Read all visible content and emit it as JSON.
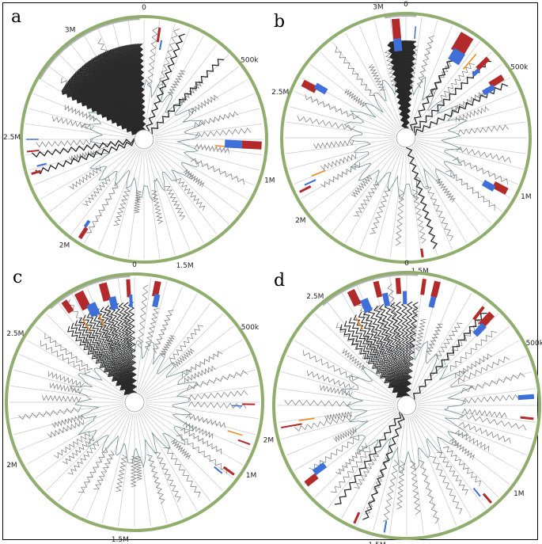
{
  "figure": {
    "colors": {
      "outer_ring": "#8fae6e",
      "spoke": "#c8c8c8",
      "inner_trace": "#6f8f8f",
      "zigzag": "#777777",
      "zigzag_dark": "#2a2a2a",
      "red_mark": "#b22a2a",
      "blue_mark": "#3f6fd8",
      "orange_mark": "#f08a1a",
      "gray_arc": "#b0b0b0"
    },
    "panels": [
      {
        "id": "a",
        "letter": "a",
        "tick_labels": [
          {
            "text": "0",
            "angle": 0
          },
          {
            "text": "500k",
            "angle": 53
          },
          {
            "text": "1M",
            "angle": 108
          },
          {
            "text": "1.5M",
            "angle": 162
          },
          {
            "text": "2M",
            "angle": 217
          },
          {
            "text": "2.5M",
            "angle": 271
          },
          {
            "text": "3M",
            "angle": 326
          }
        ],
        "fan": {
          "start": 300,
          "end": 358,
          "dense": true
        },
        "extra_zigzags": [
          20,
          44,
          253,
          262
        ],
        "marks": [
          {
            "angle": 8,
            "r0": 0.8,
            "r1": 0.92,
            "color": "red_mark",
            "w": 3
          },
          {
            "angle": 10,
            "r0": 0.74,
            "r1": 0.82,
            "color": "blue_mark",
            "w": 2
          },
          {
            "angle": 93,
            "r0": 0.8,
            "r1": 0.96,
            "color": "red_mark",
            "w": 10
          },
          {
            "angle": 93,
            "r0": 0.66,
            "r1": 0.8,
            "color": "blue_mark",
            "w": 10
          },
          {
            "angle": 95,
            "r0": 0.58,
            "r1": 0.66,
            "color": "orange_mark",
            "w": 1.5
          },
          {
            "angle": 264,
            "r0": 0.86,
            "r1": 0.96,
            "color": "red_mark",
            "w": 2
          },
          {
            "angle": 270,
            "r0": 0.86,
            "r1": 0.96,
            "color": "blue_mark",
            "w": 1.5
          },
          {
            "angle": 253,
            "r0": 0.88,
            "r1": 0.96,
            "color": "red_mark",
            "w": 3
          },
          {
            "angle": 256,
            "r0": 0.82,
            "r1": 0.9,
            "color": "blue_mark",
            "w": 2
          },
          {
            "angle": 213,
            "r0": 0.86,
            "r1": 0.96,
            "color": "red_mark",
            "w": 5
          },
          {
            "angle": 214,
            "r0": 0.8,
            "r1": 0.86,
            "color": "blue_mark",
            "w": 4
          }
        ]
      },
      {
        "id": "b",
        "letter": "b",
        "tick_labels": [
          {
            "text": "0",
            "angle": 0
          },
          {
            "text": "500k",
            "angle": 58
          },
          {
            "text": "1M",
            "angle": 116
          },
          {
            "text": "1.5M",
            "angle": 174
          },
          {
            "text": "2M",
            "angle": 232
          },
          {
            "text": "2.5M",
            "angle": 290
          },
          {
            "text": "3M",
            "angle": 348
          }
        ],
        "fan": {
          "start": 350,
          "end": 5,
          "dense": true
        },
        "extra_zigzags": [
          165,
          30,
          47,
          62
        ],
        "marks": [
          {
            "angle": 355,
            "r0": 0.8,
            "r1": 0.96,
            "color": "red_mark",
            "w": 10
          },
          {
            "angle": 355,
            "r0": 0.7,
            "r1": 0.8,
            "color": "blue_mark",
            "w": 10
          },
          {
            "angle": 5,
            "r0": 0.8,
            "r1": 0.9,
            "color": "blue_mark",
            "w": 1.5
          },
          {
            "angle": 31,
            "r0": 0.8,
            "r1": 0.96,
            "color": "red_mark",
            "w": 18
          },
          {
            "angle": 32,
            "r0": 0.72,
            "r1": 0.82,
            "color": "blue_mark",
            "w": 16
          },
          {
            "angle": 40,
            "r0": 0.72,
            "r1": 0.88,
            "color": "orange_mark",
            "w": 1.5
          },
          {
            "angle": 46,
            "r0": 0.8,
            "r1": 0.92,
            "color": "red_mark",
            "w": 6
          },
          {
            "angle": 47,
            "r0": 0.74,
            "r1": 0.8,
            "color": "blue_mark",
            "w": 5
          },
          {
            "angle": 58,
            "r0": 0.8,
            "r1": 0.92,
            "color": "red_mark",
            "w": 8
          },
          {
            "angle": 60,
            "r0": 0.72,
            "r1": 0.82,
            "color": "blue_mark",
            "w": 7
          },
          {
            "angle": 118,
            "r0": 0.8,
            "r1": 0.92,
            "color": "red_mark",
            "w": 9
          },
          {
            "angle": 120,
            "r0": 0.72,
            "r1": 0.82,
            "color": "blue_mark",
            "w": 8
          },
          {
            "angle": 172,
            "r0": 0.9,
            "r1": 0.97,
            "color": "red_mark",
            "w": 3
          },
          {
            "angle": 243,
            "r0": 0.86,
            "r1": 0.96,
            "color": "red_mark",
            "w": 3
          },
          {
            "angle": 245,
            "r0": 0.8,
            "r1": 0.9,
            "color": "blue_mark",
            "w": 2
          },
          {
            "angle": 248,
            "r0": 0.7,
            "r1": 0.82,
            "color": "orange_mark",
            "w": 1.5
          },
          {
            "angle": 298,
            "r0": 0.82,
            "r1": 0.94,
            "color": "red_mark",
            "w": 9
          },
          {
            "angle": 300,
            "r0": 0.74,
            "r1": 0.84,
            "color": "blue_mark",
            "w": 8
          }
        ]
      },
      {
        "id": "c",
        "letter": "c",
        "tick_labels": [
          {
            "text": "0",
            "angle": 0
          },
          {
            "text": "500k",
            "angle": 57
          },
          {
            "text": "1M",
            "angle": 122
          },
          {
            "text": "1.5M",
            "angle": 186
          },
          {
            "text": "2M",
            "angle": 243
          },
          {
            "text": "2.5M",
            "angle": 300
          }
        ],
        "fan": {
          "start": 318,
          "end": 358,
          "dense": false
        },
        "extra_zigzags": [],
        "marks": [
          {
            "angle": 325,
            "r0": 0.86,
            "r1": 0.96,
            "color": "red_mark",
            "w": 8
          },
          {
            "angle": 333,
            "r0": 0.82,
            "r1": 0.96,
            "color": "red_mark",
            "w": 12
          },
          {
            "angle": 336,
            "r0": 0.74,
            "r1": 0.84,
            "color": "blue_mark",
            "w": 12
          },
          {
            "angle": 345,
            "r0": 0.82,
            "r1": 0.96,
            "color": "red_mark",
            "w": 10
          },
          {
            "angle": 348,
            "r0": 0.74,
            "r1": 0.84,
            "color": "blue_mark",
            "w": 9
          },
          {
            "angle": 357,
            "r0": 0.82,
            "r1": 0.96,
            "color": "red_mark",
            "w": 5
          },
          {
            "angle": 358,
            "r0": 0.74,
            "r1": 0.84,
            "color": "blue_mark",
            "w": 4
          },
          {
            "angle": 338,
            "r0": 0.64,
            "r1": 0.74,
            "color": "orange_mark",
            "w": 1.5
          },
          {
            "angle": 328,
            "r0": 0.66,
            "r1": 0.76,
            "color": "orange_mark",
            "w": 1.5
          },
          {
            "angle": 11,
            "r0": 0.84,
            "r1": 0.96,
            "color": "red_mark",
            "w": 8
          },
          {
            "angle": 12,
            "r0": 0.76,
            "r1": 0.86,
            "color": "blue_mark",
            "w": 7
          },
          {
            "angle": 91,
            "r0": 0.84,
            "r1": 0.94,
            "color": "red_mark",
            "w": 2
          },
          {
            "angle": 92,
            "r0": 0.76,
            "r1": 0.84,
            "color": "blue_mark",
            "w": 1.5
          },
          {
            "angle": 107,
            "r0": 0.76,
            "r1": 0.88,
            "color": "orange_mark",
            "w": 1.5
          },
          {
            "angle": 110,
            "r0": 0.86,
            "r1": 0.96,
            "color": "red_mark",
            "w": 2
          },
          {
            "angle": 126,
            "r0": 0.86,
            "r1": 0.96,
            "color": "red_mark",
            "w": 3
          },
          {
            "angle": 129,
            "r0": 0.8,
            "r1": 0.88,
            "color": "blue_mark",
            "w": 2
          }
        ]
      },
      {
        "id": "d",
        "letter": "d",
        "tick_labels": [
          {
            "text": "0",
            "angle": 0
          },
          {
            "text": "500k",
            "angle": 64
          },
          {
            "text": "1M",
            "angle": 128
          },
          {
            "text": "1.5M",
            "angle": 192
          },
          {
            "text": "2M",
            "angle": 256
          },
          {
            "text": "2.5M",
            "angle": 320
          }
        ],
        "fan": {
          "start": 320,
          "end": 5,
          "dense": false
        },
        "extra_zigzags": [
          40,
          200,
          215
        ],
        "marks": [
          {
            "angle": 334,
            "r0": 0.84,
            "r1": 0.96,
            "color": "red_mark",
            "w": 10
          },
          {
            "angle": 338,
            "r0": 0.76,
            "r1": 0.86,
            "color": "blue_mark",
            "w": 10
          },
          {
            "angle": 346,
            "r0": 0.84,
            "r1": 0.96,
            "color": "red_mark",
            "w": 7
          },
          {
            "angle": 349,
            "r0": 0.76,
            "r1": 0.86,
            "color": "blue_mark",
            "w": 7
          },
          {
            "angle": 356,
            "r0": 0.84,
            "r1": 0.96,
            "color": "red_mark",
            "w": 6
          },
          {
            "angle": 359,
            "r0": 0.76,
            "r1": 0.86,
            "color": "blue_mark",
            "w": 5
          },
          {
            "angle": 8,
            "r0": 0.84,
            "r1": 0.96,
            "color": "red_mark",
            "w": 5
          },
          {
            "angle": 14,
            "r0": 0.84,
            "r1": 0.96,
            "color": "red_mark",
            "w": 8
          },
          {
            "angle": 14,
            "r0": 0.76,
            "r1": 0.84,
            "color": "blue_mark",
            "w": 7
          },
          {
            "angle": 330,
            "r0": 0.66,
            "r1": 0.76,
            "color": "orange_mark",
            "w": 1.5
          },
          {
            "angle": 38,
            "r0": 0.82,
            "r1": 0.94,
            "color": "red_mark",
            "w": 4
          },
          {
            "angle": 43,
            "r0": 0.82,
            "r1": 0.94,
            "color": "red_mark",
            "w": 9
          },
          {
            "angle": 44,
            "r0": 0.74,
            "r1": 0.84,
            "color": "blue_mark",
            "w": 8
          },
          {
            "angle": 86,
            "r0": 0.84,
            "r1": 0.96,
            "color": "blue_mark",
            "w": 6
          },
          {
            "angle": 96,
            "r0": 0.86,
            "r1": 0.96,
            "color": "red_mark",
            "w": 3
          },
          {
            "angle": 139,
            "r0": 0.88,
            "r1": 0.97,
            "color": "red_mark",
            "w": 3
          },
          {
            "angle": 141,
            "r0": 0.8,
            "r1": 0.88,
            "color": "blue_mark",
            "w": 2
          },
          {
            "angle": 190,
            "r0": 0.88,
            "r1": 0.97,
            "color": "blue_mark",
            "w": 2
          },
          {
            "angle": 204,
            "r0": 0.88,
            "r1": 0.97,
            "color": "red_mark",
            "w": 3
          },
          {
            "angle": 232,
            "r0": 0.86,
            "r1": 0.96,
            "color": "red_mark",
            "w": 8
          },
          {
            "angle": 234,
            "r0": 0.76,
            "r1": 0.86,
            "color": "blue_mark",
            "w": 8
          },
          {
            "angle": 260,
            "r0": 0.8,
            "r1": 0.96,
            "color": "red_mark",
            "w": 2
          },
          {
            "angle": 262,
            "r0": 0.7,
            "r1": 0.82,
            "color": "orange_mark",
            "w": 1.5
          }
        ]
      }
    ]
  }
}
